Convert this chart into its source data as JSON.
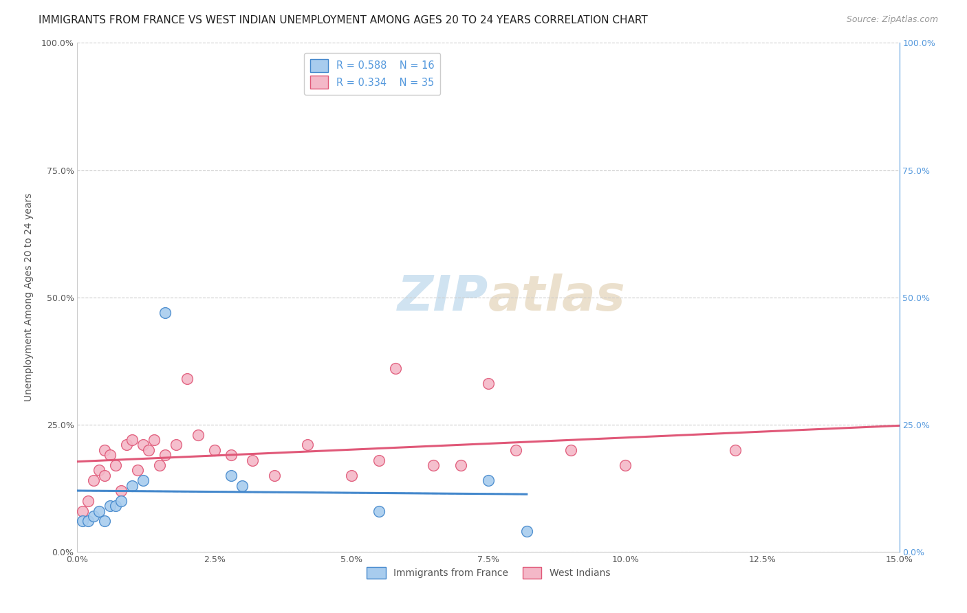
{
  "title": "IMMIGRANTS FROM FRANCE VS WEST INDIAN UNEMPLOYMENT AMONG AGES 20 TO 24 YEARS CORRELATION CHART",
  "source": "Source: ZipAtlas.com",
  "ylabel": "Unemployment Among Ages 20 to 24 years",
  "xlabel_ticks": [
    0.0,
    0.025,
    0.05,
    0.075,
    0.1,
    0.125,
    0.15
  ],
  "ylabel_ticks": [
    0.0,
    0.25,
    0.5,
    0.75,
    1.0
  ],
  "xlim": [
    0.0,
    0.15
  ],
  "ylim": [
    0.0,
    1.0
  ],
  "legend_r1": "R = 0.588",
  "legend_n1": "N = 16",
  "legend_r2": "R = 0.334",
  "legend_n2": "N = 35",
  "legend_label1": "Immigrants from France",
  "legend_label2": "West Indians",
  "color_blue": "#a8ccee",
  "color_pink": "#f4b8c8",
  "color_blue_line": "#4488cc",
  "color_pink_line": "#e05878",
  "color_right_axis": "#5599dd",
  "watermark_zip": "ZIP",
  "watermark_atlas": "atlas",
  "title_fontsize": 11,
  "source_fontsize": 9,
  "axis_label_fontsize": 10,
  "tick_fontsize": 9,
  "watermark_fontsize": 52,
  "marker_size": 130,
  "france_x": [
    0.001,
    0.002,
    0.003,
    0.004,
    0.005,
    0.006,
    0.007,
    0.008,
    0.01,
    0.012,
    0.016,
    0.028,
    0.03,
    0.055,
    0.075,
    0.082
  ],
  "france_y": [
    0.06,
    0.06,
    0.07,
    0.08,
    0.06,
    0.09,
    0.09,
    0.1,
    0.13,
    0.14,
    0.47,
    0.15,
    0.13,
    0.08,
    0.14,
    0.04
  ],
  "west_x": [
    0.001,
    0.002,
    0.003,
    0.004,
    0.005,
    0.005,
    0.006,
    0.007,
    0.008,
    0.009,
    0.01,
    0.011,
    0.012,
    0.013,
    0.014,
    0.015,
    0.016,
    0.018,
    0.02,
    0.022,
    0.025,
    0.028,
    0.032,
    0.036,
    0.042,
    0.05,
    0.055,
    0.058,
    0.065,
    0.07,
    0.075,
    0.08,
    0.09,
    0.1,
    0.12
  ],
  "west_y": [
    0.08,
    0.1,
    0.14,
    0.16,
    0.15,
    0.2,
    0.19,
    0.17,
    0.12,
    0.21,
    0.22,
    0.16,
    0.21,
    0.2,
    0.22,
    0.17,
    0.19,
    0.21,
    0.34,
    0.23,
    0.2,
    0.19,
    0.18,
    0.15,
    0.21,
    0.15,
    0.18,
    0.36,
    0.17,
    0.17,
    0.33,
    0.2,
    0.2,
    0.17,
    0.2
  ]
}
